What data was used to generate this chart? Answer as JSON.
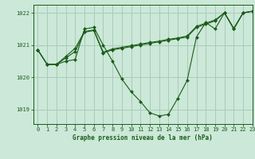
{
  "title": "Graphe pression niveau de la mer (hPa)",
  "bg_color": "#cce8d8",
  "grid_color": "#a8ccb8",
  "line_color": "#1a5c1a",
  "xlim": [
    -0.5,
    23
  ],
  "ylim": [
    1018.55,
    1022.25
  ],
  "yticks": [
    1019,
    1020,
    1021,
    1022
  ],
  "xticks": [
    0,
    1,
    2,
    3,
    4,
    5,
    6,
    7,
    8,
    9,
    10,
    11,
    12,
    13,
    14,
    15,
    16,
    17,
    18,
    19,
    20,
    21,
    22,
    23
  ],
  "series_main": {
    "x": [
      0,
      1,
      2,
      3,
      4,
      5,
      6,
      7,
      8,
      9,
      10,
      11,
      12,
      13,
      14,
      15,
      16,
      17,
      18,
      19,
      20,
      21,
      22,
      23
    ],
    "y": [
      1020.85,
      1020.4,
      1020.4,
      1020.5,
      1020.55,
      1021.5,
      1021.55,
      1021.0,
      1020.5,
      1019.95,
      1019.55,
      1019.25,
      1018.9,
      1018.8,
      1018.85,
      1019.35,
      1019.9,
      1021.25,
      1021.7,
      1021.5,
      1022.0,
      1021.5,
      1022.0,
      1022.05
    ]
  },
  "series_flat1": {
    "x": [
      0,
      1,
      2,
      3,
      4,
      5,
      6,
      7,
      8,
      9,
      10,
      11,
      12,
      13,
      14,
      15,
      16,
      17,
      18,
      19,
      20,
      21,
      22,
      23
    ],
    "y": [
      1020.85,
      1020.4,
      1020.4,
      1020.6,
      1020.8,
      1021.4,
      1021.45,
      1020.75,
      1020.85,
      1020.9,
      1020.95,
      1021.0,
      1021.05,
      1021.1,
      1021.15,
      1021.2,
      1021.25,
      1021.55,
      1021.65,
      1021.75,
      1022.0,
      1021.5,
      1022.0,
      1022.05
    ]
  },
  "series_flat2": {
    "x": [
      0,
      1,
      2,
      3,
      4,
      5,
      6,
      7,
      8,
      9,
      10,
      11,
      12,
      13,
      14,
      15,
      16,
      17,
      18,
      19,
      20,
      21,
      22,
      23
    ],
    "y": [
      1020.85,
      1020.4,
      1020.4,
      1020.65,
      1020.9,
      1021.42,
      1021.47,
      1020.78,
      1020.88,
      1020.93,
      1020.98,
      1021.03,
      1021.08,
      1021.12,
      1021.18,
      1021.22,
      1021.28,
      1021.58,
      1021.68,
      1021.78,
      1022.0,
      1021.52,
      1022.0,
      1022.05
    ]
  }
}
